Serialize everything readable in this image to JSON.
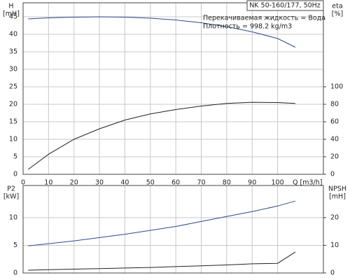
{
  "chart_data": [
    {
      "type": "line",
      "title": "NK 50-160/177, 50Hz",
      "annotations": [
        "Перекачиваемая жидкость = Вода",
        "Плотность = 998.2 kg/m3"
      ],
      "y_label": [
        "H",
        "[mH]"
      ],
      "y2_label": [
        "eta",
        "[%]"
      ],
      "x_label": "Q [m3/h]",
      "x": [
        2,
        10,
        20,
        30,
        40,
        50,
        60,
        70,
        80,
        90,
        100,
        107
      ],
      "series": [
        {
          "name": "H",
          "color": "#2b4a8c",
          "values": [
            44.4,
            44.7,
            44.9,
            45.0,
            44.9,
            44.6,
            44.1,
            43.3,
            42.2,
            40.7,
            38.8,
            36.3
          ]
        },
        {
          "name": "eta",
          "color": "#222222",
          "axis": "y2",
          "values": [
            5.6,
            23,
            40,
            52,
            62,
            69,
            74,
            78,
            81,
            82.3,
            82,
            81
          ]
        }
      ],
      "xlim": [
        0,
        118
      ],
      "xticks": [
        0,
        10,
        20,
        30,
        40,
        50,
        60,
        70,
        80,
        90,
        100
      ],
      "ylim": [
        0,
        49
      ],
      "yticks": [
        0,
        5,
        10,
        15,
        20,
        25,
        30,
        35,
        40,
        45
      ],
      "y2lim": [
        0,
        196
      ],
      "y2ticks": [
        0,
        20,
        40,
        60,
        80,
        100
      ],
      "grid": true
    },
    {
      "type": "line",
      "y_label": [
        "P2",
        "[kW]"
      ],
      "y2_label": [
        "NPSH",
        "[mH]"
      ],
      "x": [
        2,
        10,
        20,
        30,
        40,
        50,
        60,
        70,
        80,
        90,
        100,
        107
      ],
      "series": [
        {
          "name": "P2",
          "color": "#2b4a8c",
          "values": [
            4.9,
            5.3,
            5.8,
            6.4,
            7.0,
            7.7,
            8.4,
            9.3,
            10.2,
            11.1,
            12.1,
            13.0
          ]
        },
        {
          "name": "NPSH",
          "color": "#222222",
          "axis": "y2",
          "values": [
            1.0,
            1.2,
            1.4,
            1.6,
            1.8,
            2.0,
            2.3,
            2.6,
            2.9,
            3.3,
            3.5,
            7.6
          ]
        }
      ],
      "xlim": [
        0,
        118
      ],
      "xticks": [
        0,
        10,
        20,
        30,
        40,
        50,
        60,
        70,
        80,
        90,
        100
      ],
      "ylim": [
        0,
        15.8
      ],
      "yticks": [
        0,
        5,
        10
      ],
      "y2lim": [
        0,
        31.6
      ],
      "y2ticks": [
        0,
        10,
        20
      ],
      "grid": true
    }
  ]
}
